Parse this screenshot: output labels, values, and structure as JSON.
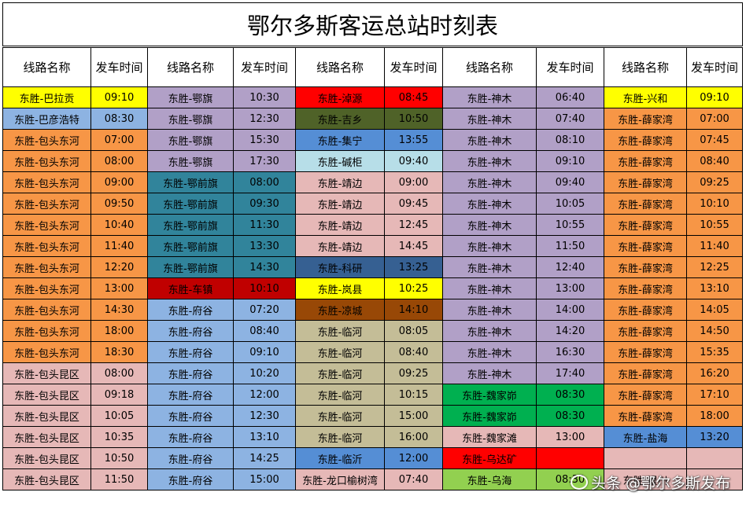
{
  "title": "鄂尔多斯客运总站时刻表",
  "headers": [
    "线路名称",
    "发车时间",
    "线路名称",
    "发车时间",
    "线路名称",
    "发车时间",
    "线路名称",
    "发车时间",
    "线路名称",
    "发车时间"
  ],
  "colors": {
    "yellow": "#ffff00",
    "blue": "#8db3e2",
    "orange": "#f79646",
    "peach": "#e6b8b7",
    "purple": "#b1a0c7",
    "teal": "#31849b",
    "red": "#ff0000",
    "olive": "#4f6228",
    "royal": "#558ed5",
    "ice": "#b7dee8",
    "navy": "#366092",
    "brown": "#984806",
    "tan": "#c4bd97",
    "green": "#00b050",
    "lime": "#92d050",
    "dark": "#c00000"
  },
  "rows": [
    [
      [
        "东胜-巴拉贡",
        "09:10",
        "yellow"
      ],
      [
        "东胜-鄂旗",
        "10:30",
        "purple"
      ],
      [
        "东胜-淖源",
        "08:45",
        "red"
      ],
      [
        "东胜-神木",
        "06:40",
        "purple"
      ],
      [
        "东胜-兴和",
        "09:10",
        "yellow"
      ]
    ],
    [
      [
        "东胜-巴彦浩特",
        "08:30",
        "blue"
      ],
      [
        "东胜-鄂旗",
        "12:30",
        "purple"
      ],
      [
        "东胜-吉乡",
        "10:50",
        "olive"
      ],
      [
        "东胜-神木",
        "07:40",
        "purple"
      ],
      [
        "东胜-薛家湾",
        "07:00",
        "orange"
      ]
    ],
    [
      [
        "东胜-包头东河",
        "07:00",
        "orange"
      ],
      [
        "东胜-鄂旗",
        "15:30",
        "purple"
      ],
      [
        "东胜-集宁",
        "13:55",
        "royal"
      ],
      [
        "东胜-神木",
        "08:10",
        "purple"
      ],
      [
        "东胜-薛家湾",
        "07:45",
        "orange"
      ]
    ],
    [
      [
        "东胜-包头东河",
        "08:00",
        "orange"
      ],
      [
        "东胜-鄂旗",
        "17:30",
        "purple"
      ],
      [
        "东胜-碱柜",
        "09:40",
        "ice"
      ],
      [
        "东胜-神木",
        "09:10",
        "purple"
      ],
      [
        "东胜-薛家湾",
        "08:40",
        "orange"
      ]
    ],
    [
      [
        "东胜-包头东河",
        "09:00",
        "orange"
      ],
      [
        "东胜-鄂前旗",
        "08:00",
        "teal"
      ],
      [
        "东胜-靖边",
        "09:00",
        "peach"
      ],
      [
        "东胜-神木",
        "09:40",
        "purple"
      ],
      [
        "东胜-薛家湾",
        "09:25",
        "orange"
      ]
    ],
    [
      [
        "东胜-包头东河",
        "09:50",
        "orange"
      ],
      [
        "东胜-鄂前旗",
        "09:30",
        "teal"
      ],
      [
        "东胜-靖边",
        "09:45",
        "peach"
      ],
      [
        "东胜-神木",
        "10:05",
        "purple"
      ],
      [
        "东胜-薛家湾",
        "10:10",
        "orange"
      ]
    ],
    [
      [
        "东胜-包头东河",
        "10:40",
        "orange"
      ],
      [
        "东胜-鄂前旗",
        "11:30",
        "teal"
      ],
      [
        "东胜-靖边",
        "12:45",
        "peach"
      ],
      [
        "东胜-神木",
        "10:55",
        "purple"
      ],
      [
        "东胜-薛家湾",
        "10:55",
        "orange"
      ]
    ],
    [
      [
        "东胜-包头东河",
        "11:40",
        "orange"
      ],
      [
        "东胜-鄂前旗",
        "13:30",
        "teal"
      ],
      [
        "东胜-靖边",
        "14:45",
        "peach"
      ],
      [
        "东胜-神木",
        "11:50",
        "purple"
      ],
      [
        "东胜-薛家湾",
        "11:40",
        "orange"
      ]
    ],
    [
      [
        "东胜-包头东河",
        "12:20",
        "orange"
      ],
      [
        "东胜-鄂前旗",
        "14:30",
        "teal"
      ],
      [
        "东胜-科研",
        "13:25",
        "navy"
      ],
      [
        "东胜-神木",
        "12:40",
        "purple"
      ],
      [
        "东胜-薛家湾",
        "12:25",
        "orange"
      ]
    ],
    [
      [
        "东胜-包头东河",
        "13:00",
        "orange"
      ],
      [
        "东胜-车镇",
        "10:10",
        "dark"
      ],
      [
        "东胜-岚县",
        "10:25",
        "yellow"
      ],
      [
        "东胜-神木",
        "13:00",
        "purple"
      ],
      [
        "东胜-薛家湾",
        "13:10",
        "orange"
      ]
    ],
    [
      [
        "东胜-包头东河",
        "14:30",
        "orange"
      ],
      [
        "东胜-府谷",
        "07:20",
        "blue"
      ],
      [
        "东胜-凉城",
        "14:10",
        "brown"
      ],
      [
        "东胜-神木",
        "14:00",
        "purple"
      ],
      [
        "东胜-薛家湾",
        "14:05",
        "orange"
      ]
    ],
    [
      [
        "东胜-包头东河",
        "18:00",
        "orange"
      ],
      [
        "东胜-府谷",
        "08:40",
        "blue"
      ],
      [
        "东胜-临河",
        "08:05",
        "tan"
      ],
      [
        "东胜-神木",
        "14:20",
        "purple"
      ],
      [
        "东胜-薛家湾",
        "14:50",
        "orange"
      ]
    ],
    [
      [
        "东胜-包头东河",
        "18:30",
        "orange"
      ],
      [
        "东胜-府谷",
        "09:10",
        "blue"
      ],
      [
        "东胜-临河",
        "08:40",
        "tan"
      ],
      [
        "东胜-神木",
        "16:30",
        "purple"
      ],
      [
        "东胜-薛家湾",
        "15:35",
        "orange"
      ]
    ],
    [
      [
        "东胜-包头昆区",
        "08:00",
        "peach"
      ],
      [
        "东胜-府谷",
        "10:20",
        "blue"
      ],
      [
        "东胜-临河",
        "09:25",
        "tan"
      ],
      [
        "东胜-神木",
        "17:40",
        "purple"
      ],
      [
        "东胜-薛家湾",
        "16:20",
        "orange"
      ]
    ],
    [
      [
        "东胜-包头昆区",
        "09:18",
        "peach"
      ],
      [
        "东胜-府谷",
        "12:00",
        "blue"
      ],
      [
        "东胜-临河",
        "10:15",
        "tan"
      ],
      [
        "东胜-魏家峁",
        "08:30",
        "green"
      ],
      [
        "东胜-薛家湾",
        "17:10",
        "orange"
      ]
    ],
    [
      [
        "东胜-包头昆区",
        "10:05",
        "peach"
      ],
      [
        "东胜-府谷",
        "12:30",
        "blue"
      ],
      [
        "东胜-临河",
        "15:00",
        "tan"
      ],
      [
        "东胜-魏家峁",
        "08:30",
        "green"
      ],
      [
        "东胜-薛家湾",
        "18:00",
        "orange"
      ]
    ],
    [
      [
        "东胜-包头昆区",
        "10:35",
        "peach"
      ],
      [
        "东胜-府谷",
        "13:10",
        "blue"
      ],
      [
        "东胜-临河",
        "16:00",
        "tan"
      ],
      [
        "东胜-魏家滩",
        "13:00",
        "peach"
      ],
      [
        "东胜-盐海",
        "13:20",
        "royal"
      ]
    ],
    [
      [
        "东胜-包头昆区",
        "10:50",
        "peach"
      ],
      [
        "东胜-府谷",
        "14:25",
        "blue"
      ],
      [
        "东胜-临沂",
        "12:00",
        "royal"
      ],
      [
        "东胜-乌达矿",
        "",
        "red"
      ],
      [
        "",
        "",
        "peach"
      ]
    ],
    [
      [
        "东胜-包头昆区",
        "11:50",
        "peach"
      ],
      [
        "东胜-府谷",
        "15:00",
        "blue"
      ],
      [
        "东胜-龙口榆树湾",
        "07:40",
        "peach"
      ],
      [
        "东胜-乌海",
        "08:30",
        "lime"
      ],
      [
        "东胜-银川",
        "",
        "peach"
      ]
    ]
  ],
  "watermark": "头条 @鄂尔多斯发布"
}
